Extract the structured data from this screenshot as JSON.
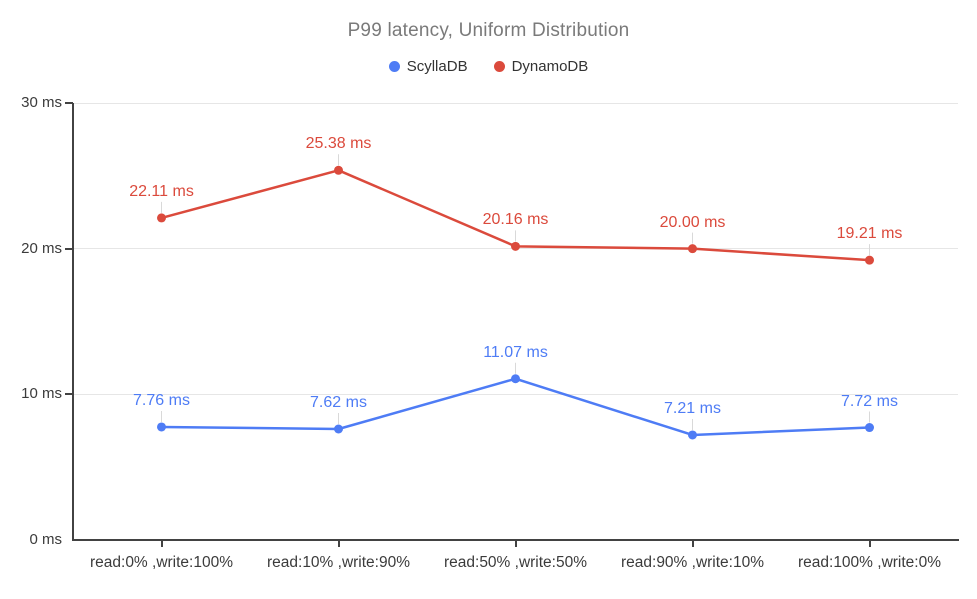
{
  "chart_data": {
    "type": "line",
    "title": "P99 latency, Uniform Distribution",
    "categories": [
      "read:0% ,write:100%",
      "read:10% ,write:90%",
      "read:50% ,write:50%",
      "read:90% ,write:10%",
      "read:100% ,write:0%"
    ],
    "series": [
      {
        "name": "ScyllaDB",
        "color": "#4e7cf5",
        "values": [
          7.76,
          7.62,
          11.07,
          7.21,
          7.72
        ],
        "point_labels": [
          "7.76 ms",
          "7.62 ms",
          "11.07 ms",
          "7.21 ms",
          "7.72 ms"
        ]
      },
      {
        "name": "DynamoDB",
        "color": "#db4a3c",
        "values": [
          22.11,
          25.38,
          20.16,
          20.0,
          19.21
        ],
        "point_labels": [
          "22.11 ms",
          "25.38 ms",
          "20.16 ms",
          "20.00 ms",
          "19.21 ms"
        ]
      }
    ],
    "ylim": [
      0,
      30
    ],
    "yticks": [
      0,
      10,
      20,
      30
    ],
    "ytick_labels": [
      "0 ms",
      "10 ms",
      "20 ms",
      "30 ms"
    ],
    "xlabel": "",
    "ylabel": "",
    "grid": true,
    "legend_position": "top",
    "colors": {
      "grid": "#e6e6e6",
      "axis": "#424242",
      "axis_text": "#3b3b3b",
      "title_text": "#7a7a7a",
      "leader_line": "#d9d9d9"
    }
  }
}
